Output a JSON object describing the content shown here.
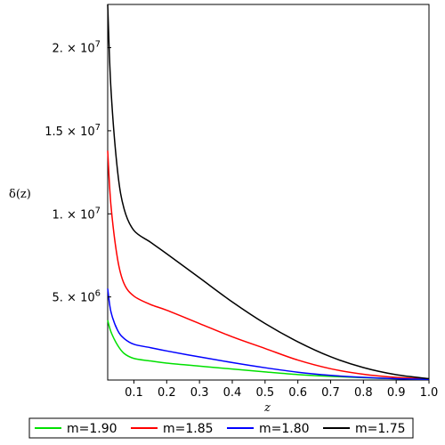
{
  "chart_data": {
    "type": "line",
    "title": "",
    "xlabel": "z",
    "ylabel": "δ(z)",
    "xlim": [
      0.02,
      1.0
    ],
    "ylim": [
      0,
      22600000
    ],
    "grid": false,
    "legend_placement": "bottom",
    "x_ticks": [
      {
        "value": 0.1,
        "label": "0.1"
      },
      {
        "value": 0.2,
        "label": "0.2"
      },
      {
        "value": 0.3,
        "label": "0.3"
      },
      {
        "value": 0.4,
        "label": "0.4"
      },
      {
        "value": 0.5,
        "label": "0.5"
      },
      {
        "value": 0.6,
        "label": "0.6"
      },
      {
        "value": 0.7,
        "label": "0.7"
      },
      {
        "value": 0.8,
        "label": "0.8"
      },
      {
        "value": 0.9,
        "label": "0.9"
      },
      {
        "value": 1.0,
        "label": "1.0"
      }
    ],
    "y_ticks": [
      {
        "value": 5000000,
        "mantissa": "5.",
        "exponent": "6"
      },
      {
        "value": 10000000,
        "mantissa": "1.",
        "exponent": "7"
      },
      {
        "value": 15000000,
        "mantissa": "1.5",
        "exponent": "7"
      },
      {
        "value": 20000000,
        "mantissa": "2.",
        "exponent": "7"
      }
    ],
    "tick_times_base": "× 10",
    "x": [
      0.02,
      0.03,
      0.05,
      0.07,
      0.1,
      0.15,
      0.2,
      0.3,
      0.4,
      0.5,
      0.6,
      0.7,
      0.8,
      0.9,
      1.0
    ],
    "series": [
      {
        "name": "m=1.90",
        "color": "#00e000",
        "values": [
          3600000,
          2900000,
          2100000,
          1600000,
          1300000,
          1150000,
          1020000,
          840000,
          660000,
          490000,
          330000,
          220000,
          140000,
          80000,
          40000
        ]
      },
      {
        "name": "m=1.85",
        "color": "#ff0000",
        "values": [
          13800000,
          10500000,
          7300000,
          5800000,
          5050000,
          4550000,
          4200000,
          3400000,
          2600000,
          1900000,
          1200000,
          680000,
          350000,
          160000,
          60000
        ]
      },
      {
        "name": "m=1.80",
        "color": "#0000ff",
        "values": [
          5500000,
          4100000,
          3000000,
          2500000,
          2150000,
          1950000,
          1750000,
          1390000,
          1050000,
          740000,
          470000,
          280000,
          160000,
          80000,
          40000
        ]
      },
      {
        "name": "m=1.75",
        "color": "#000000",
        "values": [
          22600000,
          17500000,
          12600000,
          10300000,
          9000000,
          8300000,
          7600000,
          6150000,
          4700000,
          3400000,
          2300000,
          1400000,
          750000,
          320000,
          80000
        ]
      }
    ]
  }
}
